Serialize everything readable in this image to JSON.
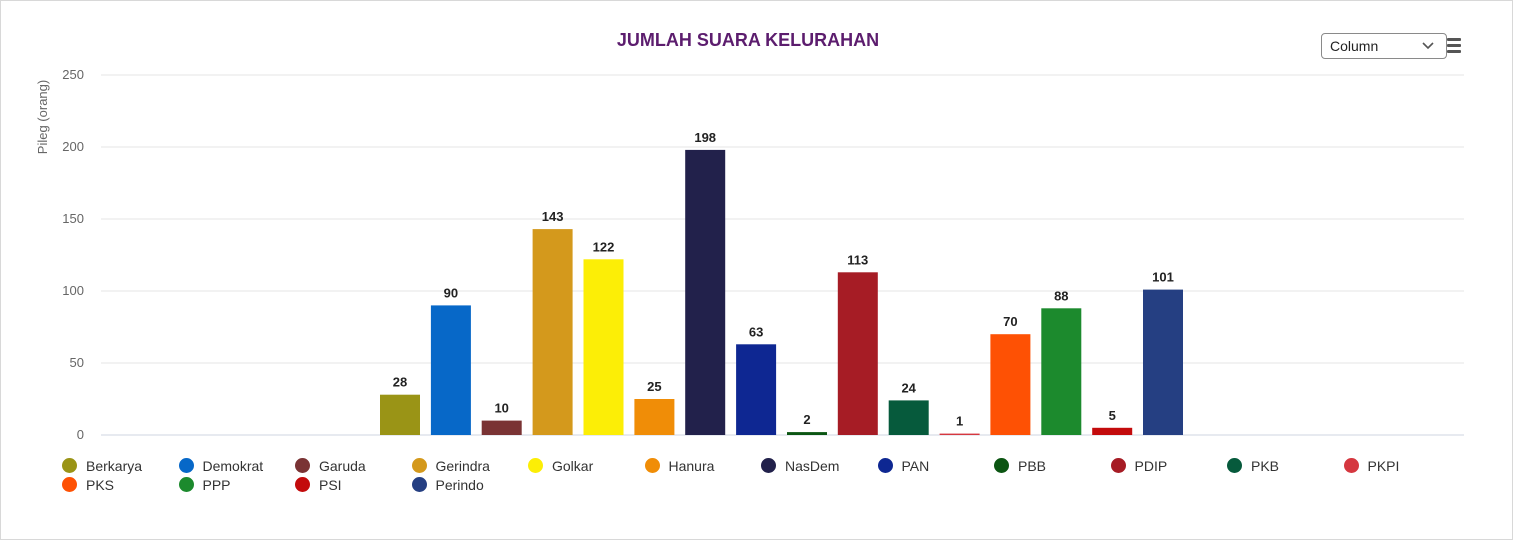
{
  "chart_data": {
    "type": "bar",
    "title": "JUMLAH SUARA KELURAHAN",
    "ylabel": "Pileg (orang)",
    "ylim": [
      0,
      250
    ],
    "yticks": [
      0,
      50,
      100,
      150,
      200,
      250
    ],
    "grid": true,
    "legend_position": "bottom",
    "data_labels": true,
    "series": [
      {
        "name": "Berkarya",
        "value": 28,
        "color": "#9a9416"
      },
      {
        "name": "Demokrat",
        "value": 90,
        "color": "#0768c8"
      },
      {
        "name": "Garuda",
        "value": 10,
        "color": "#7a3334"
      },
      {
        "name": "Gerindra",
        "value": 143,
        "color": "#d4991c"
      },
      {
        "name": "Golkar",
        "value": 122,
        "color": "#fcee06"
      },
      {
        "name": "Hanura",
        "value": 25,
        "color": "#f08d07"
      },
      {
        "name": "NasDem",
        "value": 198,
        "color": "#22214b"
      },
      {
        "name": "PAN",
        "value": 63,
        "color": "#0e2792"
      },
      {
        "name": "PBB",
        "value": 2,
        "color": "#0b5512"
      },
      {
        "name": "PDIP",
        "value": 113,
        "color": "#a61c25"
      },
      {
        "name": "PKB",
        "value": 24,
        "color": "#065a3c"
      },
      {
        "name": "PKPI",
        "value": 1,
        "color": "#d5373f"
      },
      {
        "name": "PKS",
        "value": 70,
        "color": "#fe5104"
      },
      {
        "name": "PPP",
        "value": 88,
        "color": "#1c8a2d"
      },
      {
        "name": "PSI",
        "value": 5,
        "color": "#c30b0c"
      },
      {
        "name": "Perindo",
        "value": 101,
        "color": "#253f82"
      }
    ]
  },
  "controls": {
    "chart_type_selected": "Column",
    "menu_icon": "hamburger-menu-icon",
    "select_icon": "chevron-down-icon"
  }
}
